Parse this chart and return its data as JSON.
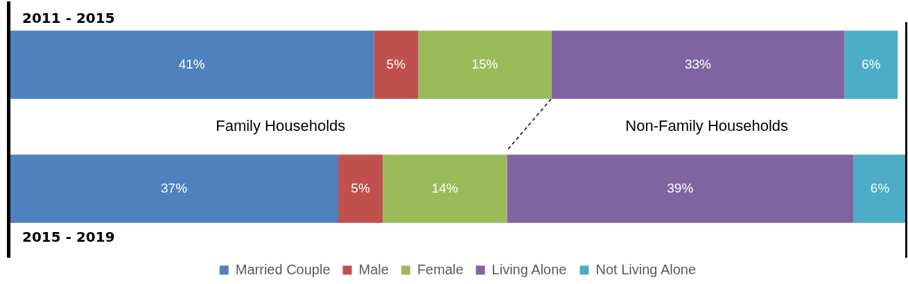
{
  "chart_data": {
    "type": "bar",
    "orientation": "horizontal",
    "stacked": true,
    "categories": [
      "2011 - 2015",
      "2015 - 2019"
    ],
    "series": [
      {
        "name": "Married Couple",
        "color": "#4f81bd",
        "values": [
          41,
          37
        ],
        "value_labels": [
          "41%",
          "37%"
        ]
      },
      {
        "name": "Male",
        "color": "#c0504d",
        "values": [
          5,
          5
        ],
        "value_labels": [
          "5%",
          "5%"
        ]
      },
      {
        "name": "Female",
        "color": "#9bbb59",
        "values": [
          15,
          14
        ],
        "value_labels": [
          "15%",
          "14%"
        ]
      },
      {
        "name": "Living Alone",
        "color": "#8064a2",
        "values": [
          33,
          39
        ],
        "value_labels": [
          "33%",
          "39%"
        ]
      },
      {
        "name": "Not Living Alone",
        "color": "#4bacc6",
        "values": [
          6,
          6
        ],
        "value_labels": [
          "6%",
          "6%"
        ]
      }
    ],
    "legend": "bottom",
    "annotations": [
      "Family Households",
      "Non-Family Households"
    ]
  }
}
